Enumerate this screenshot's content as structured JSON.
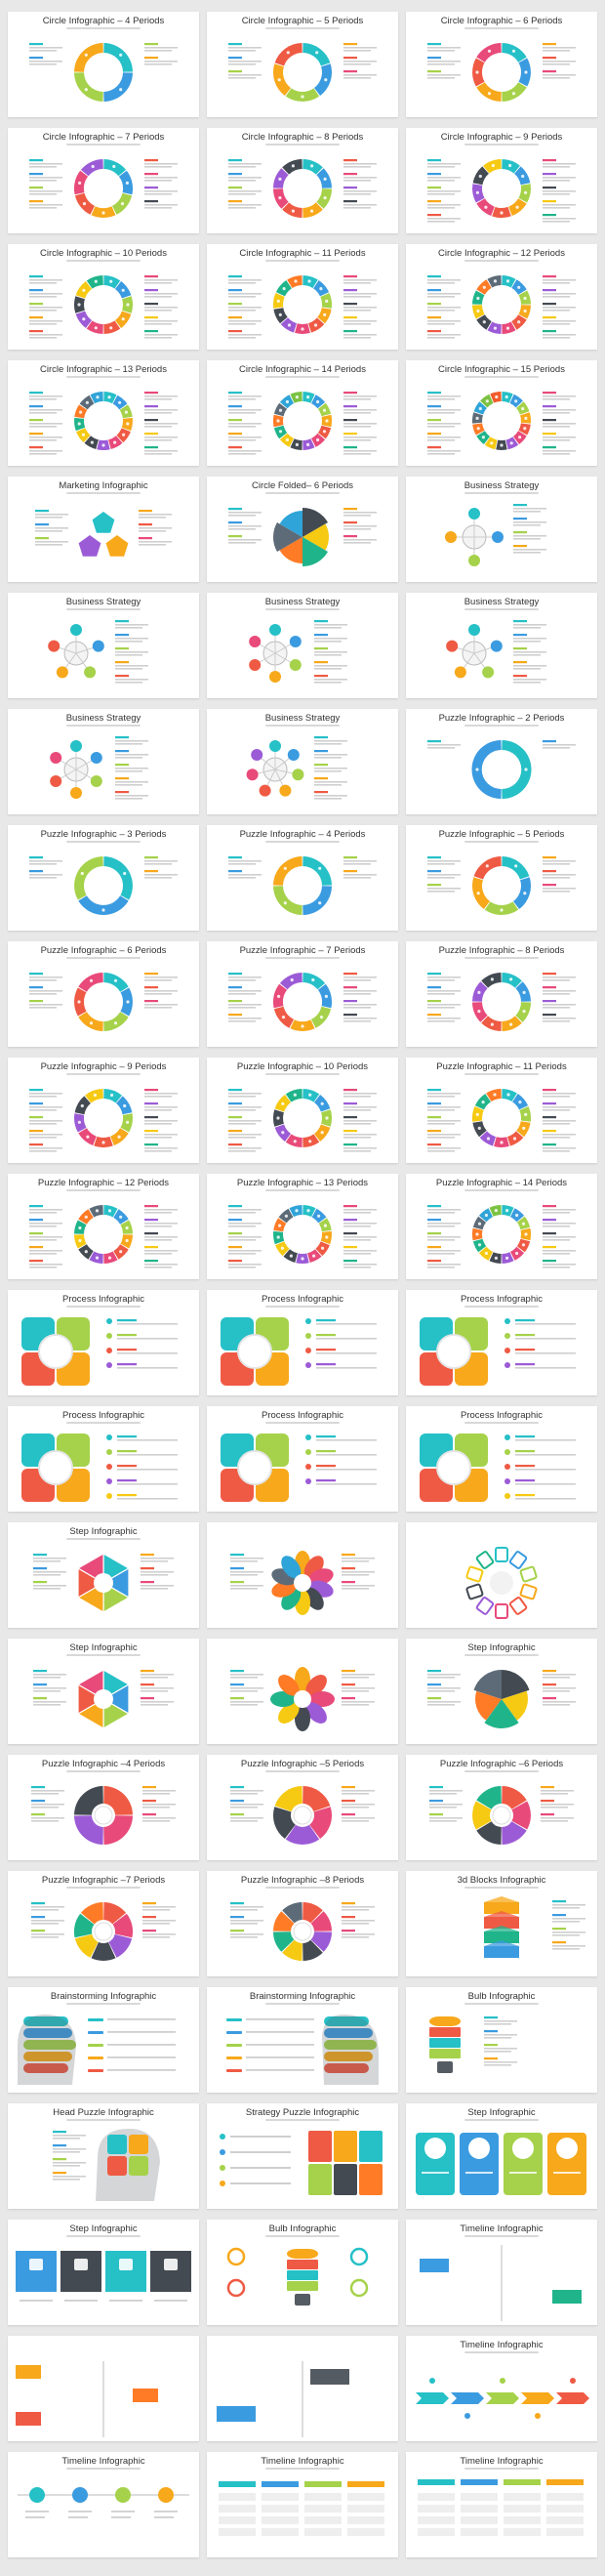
{
  "palette": [
    "#26c0c7",
    "#3b9be0",
    "#a5d24a",
    "#f7a81b",
    "#ef5a44",
    "#e84a7a",
    "#9c5bd6",
    "#444a52",
    "#f6c913",
    "#20b48a",
    "#ff7b26",
    "#5d6b78",
    "#2fa4d8",
    "#7cc242",
    "#f25c2a"
  ],
  "slides": [
    {
      "title": "Circle Infographic – 4 Periods",
      "art": "ring",
      "n": 4
    },
    {
      "title": "Circle Infographic – 5 Periods",
      "art": "ring",
      "n": 5
    },
    {
      "title": "Circle Infographic – 6 Periods",
      "art": "ring",
      "n": 6
    },
    {
      "title": "Circle Infographic – 7 Periods",
      "art": "ring",
      "n": 7
    },
    {
      "title": "Circle Infographic – 8 Periods",
      "art": "ring",
      "n": 8
    },
    {
      "title": "Circle Infographic – 9 Periods",
      "art": "ring",
      "n": 9
    },
    {
      "title": "Circle Infographic – 10 Periods",
      "art": "ring",
      "n": 10
    },
    {
      "title": "Circle Infographic – 11 Periods",
      "art": "ring",
      "n": 11
    },
    {
      "title": "Circle Infographic – 12 Periods",
      "art": "ring",
      "n": 12
    },
    {
      "title": "Circle Infographic – 13 Periods",
      "art": "ring",
      "n": 13
    },
    {
      "title": "Circle Infographic – 14 Periods",
      "art": "ring",
      "n": 14
    },
    {
      "title": "Circle Infographic – 15 Periods",
      "art": "ring",
      "n": 15
    },
    {
      "title": "Marketing Infographic",
      "art": "pentagons",
      "n": 3
    },
    {
      "title": "Circle Folded– 6 Periods",
      "art": "pie",
      "n": 6
    },
    {
      "title": "Business Strategy",
      "art": "hub",
      "n": 4
    },
    {
      "title": "Business Strategy",
      "art": "hub",
      "n": 5
    },
    {
      "title": "Business Strategy",
      "art": "hub",
      "n": 6
    },
    {
      "title": "Business Strategy",
      "art": "hub",
      "n": 5
    },
    {
      "title": "Business Strategy",
      "art": "hub",
      "n": 6
    },
    {
      "title": "Business Strategy",
      "art": "hub",
      "n": 7
    },
    {
      "title": "Puzzle Infographic – 2 Periods",
      "art": "ring",
      "n": 2
    },
    {
      "title": "Puzzle Infographic – 3 Periods",
      "art": "ring",
      "n": 3
    },
    {
      "title": "Puzzle Infographic – 4 Periods",
      "art": "ring",
      "n": 4
    },
    {
      "title": "Puzzle Infographic – 5 Periods",
      "art": "ring",
      "n": 5
    },
    {
      "title": "Puzzle Infographic – 6 Periods",
      "art": "ring",
      "n": 6
    },
    {
      "title": "Puzzle Infographic – 7 Periods",
      "art": "ring",
      "n": 7
    },
    {
      "title": "Puzzle Infographic – 8 Periods",
      "art": "ring",
      "n": 8
    },
    {
      "title": "Puzzle Infographic – 9 Periods",
      "art": "ring",
      "n": 9
    },
    {
      "title": "Puzzle Infographic – 10 Periods",
      "art": "ring",
      "n": 10
    },
    {
      "title": "Puzzle Infographic – 11 Periods",
      "art": "ring",
      "n": 11
    },
    {
      "title": "Puzzle Infographic – 12 Periods",
      "art": "ring",
      "n": 12
    },
    {
      "title": "Puzzle Infographic – 13 Periods",
      "art": "ring",
      "n": 13
    },
    {
      "title": "Puzzle Infographic – 14 Periods",
      "art": "ring",
      "n": 14
    },
    {
      "title": "Process Infographic",
      "art": "process",
      "n": 4
    },
    {
      "title": "Process Infographic",
      "art": "process",
      "n": 4
    },
    {
      "title": "Process Infographic",
      "art": "process",
      "n": 4
    },
    {
      "title": "Process Infographic",
      "art": "process",
      "n": 5
    },
    {
      "title": "Process Infographic",
      "art": "process",
      "n": 4
    },
    {
      "title": "Process Infographic",
      "art": "process",
      "n": 5
    },
    {
      "title": "Step Infographic",
      "art": "hexagon",
      "n": 6
    },
    {
      "title": "",
      "art": "petals",
      "n": 10
    },
    {
      "title": "",
      "art": "tabs",
      "n": 10
    },
    {
      "title": "Step Infographic",
      "art": "hexagon",
      "n": 6
    },
    {
      "title": "",
      "art": "petals",
      "n": 8
    },
    {
      "title": "Step Infographic",
      "art": "pie",
      "n": 5
    },
    {
      "title": "Puzzle Infographic –4 Periods",
      "art": "gear",
      "n": 4
    },
    {
      "title": "Puzzle Infographic –5 Periods",
      "art": "gear",
      "n": 5
    },
    {
      "title": "Puzzle Infographic –6 Periods",
      "art": "gear",
      "n": 6
    },
    {
      "title": "Puzzle Infographic –7 Periods",
      "art": "gear",
      "n": 7
    },
    {
      "title": "Puzzle Infographic –8 Periods",
      "art": "gear",
      "n": 8
    },
    {
      "title": "3d Blocks Infographic",
      "art": "blocks",
      "n": 4
    },
    {
      "title": "Brainstorming Infographic",
      "art": "head",
      "n": 5
    },
    {
      "title": "Brainstorming Infographic",
      "art": "headr",
      "n": 5
    },
    {
      "title": "Bulb Infographic",
      "art": "bulb",
      "n": 4
    },
    {
      "title": "Head Puzzle Infographic",
      "art": "headpuzzle",
      "n": 4
    },
    {
      "title": "Strategy Puzzle Infographic",
      "art": "strategy",
      "n": 4
    },
    {
      "title": "Step Infographic",
      "art": "columns",
      "n": 4
    },
    {
      "title": "Step Infographic",
      "art": "squares",
      "n": 4
    },
    {
      "title": "Bulb Infographic",
      "art": "bulb2",
      "n": 4
    },
    {
      "title": "Timeline Infographic",
      "art": "timeline1",
      "n": 2
    },
    {
      "title": "",
      "art": "timeline2",
      "n": 3
    },
    {
      "title": "",
      "art": "timeline3",
      "n": 2
    },
    {
      "title": "Timeline Infographic",
      "art": "arrows",
      "n": 5
    },
    {
      "title": "Timeline Infographic",
      "art": "circles",
      "n": 4
    },
    {
      "title": "Timeline Infographic",
      "art": "tablebars",
      "n": 4
    },
    {
      "title": "Timeline Infographic",
      "art": "tablebars2",
      "n": 4
    }
  ]
}
